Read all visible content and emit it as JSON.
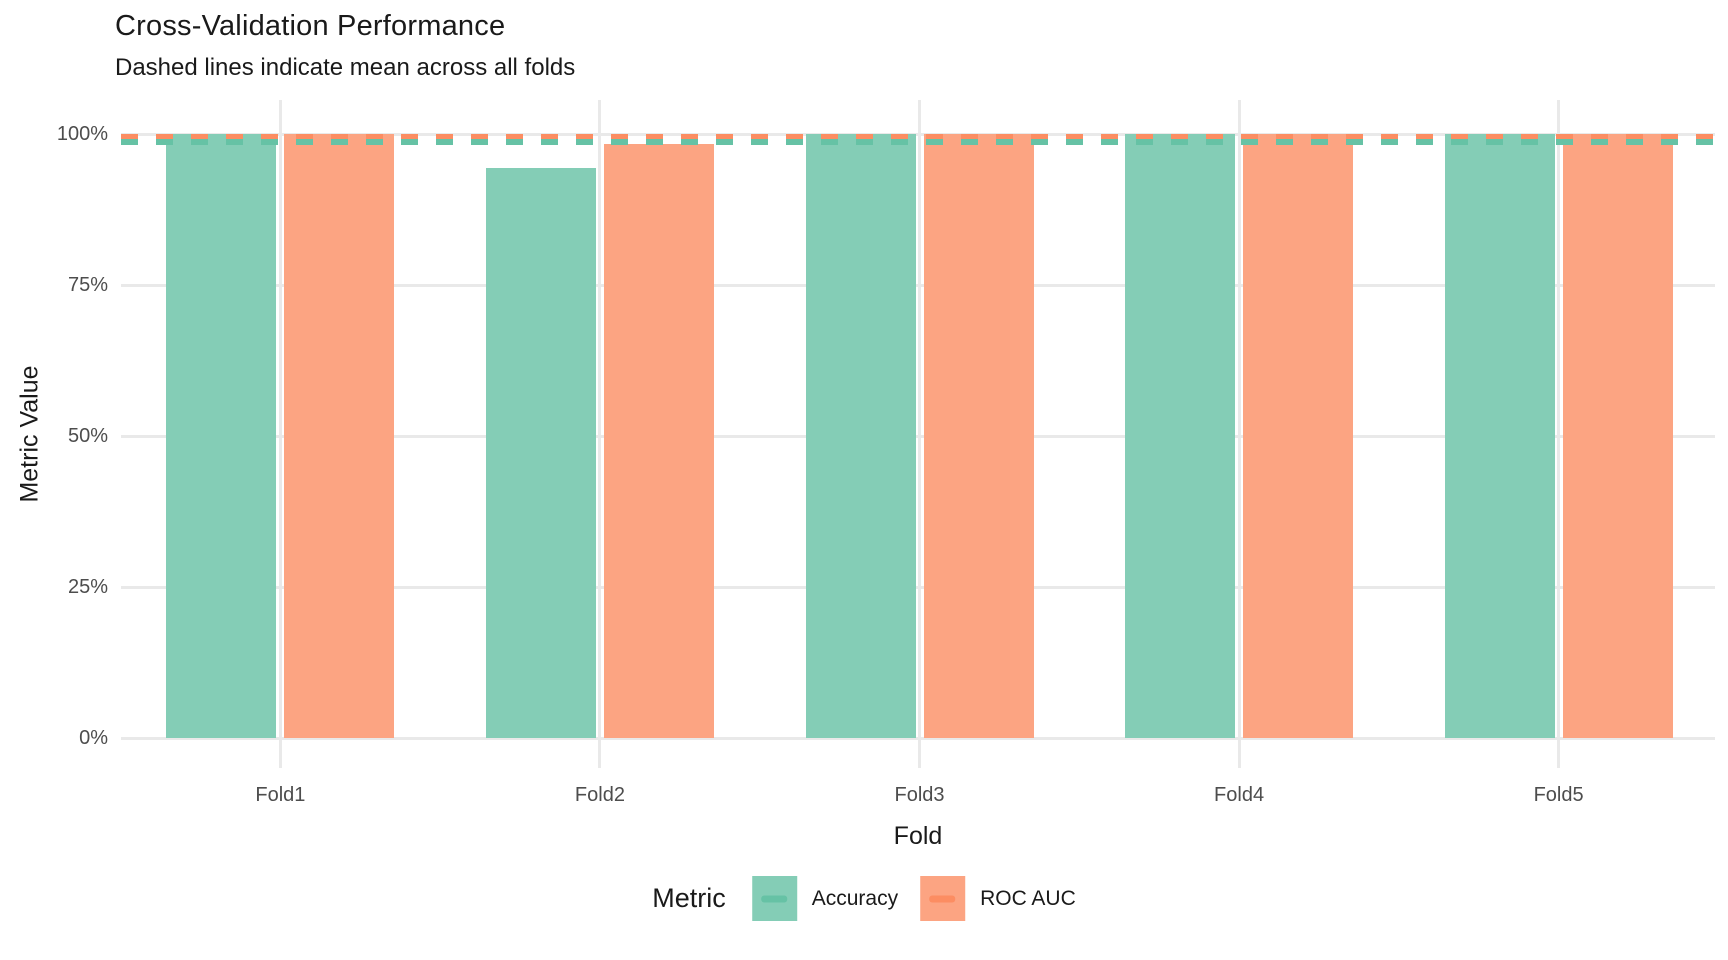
{
  "header": {
    "title": "Cross-Validation Performance",
    "subtitle": "Dashed lines indicate mean across all folds"
  },
  "axes": {
    "x_title": "Fold",
    "y_title": "Metric Value"
  },
  "legend": {
    "title": "Metric",
    "items": [
      {
        "label": "Accuracy"
      },
      {
        "label": "ROC AUC"
      }
    ]
  },
  "colors": {
    "accuracy_fill": "#84CDB6",
    "accuracy_line": "#66C2A5",
    "roc_auc_fill": "#FCA482",
    "roc_auc_line": "#FC8D62",
    "gridline": "#E9E9E9",
    "tick_text": "#4D4D4D",
    "text": "#1A1A1A",
    "background": "#FFFFFF"
  },
  "chart_data": {
    "type": "bar",
    "title": "Cross-Validation Performance",
    "subtitle": "Dashed lines indicate mean across all folds",
    "xlabel": "Fold",
    "ylabel": "Metric Value",
    "categories": [
      "Fold1",
      "Fold2",
      "Fold3",
      "Fold4",
      "Fold5"
    ],
    "series": [
      {
        "name": "Accuracy",
        "fill": "#84CDB6",
        "line": "#66C2A5",
        "values": [
          1.0,
          0.944,
          1.0,
          1.0,
          1.0
        ],
        "mean": 0.989
      },
      {
        "name": "ROC AUC",
        "fill": "#FCA482",
        "line": "#FC8D62",
        "values": [
          1.0,
          0.984,
          1.0,
          1.0,
          1.0
        ],
        "mean": 0.997
      }
    ],
    "mean_lines_note": "Dashed horizontal lines drawn at each series mean",
    "ylim": [
      0,
      1.0
    ],
    "ytick_values": [
      0,
      0.25,
      0.5,
      0.75,
      1.0
    ],
    "yticks": [
      "0%",
      "25%",
      "50%",
      "75%",
      "100%"
    ],
    "value_format": "percent",
    "grid": true,
    "legend_title": "Metric",
    "legend_position": "bottom"
  }
}
